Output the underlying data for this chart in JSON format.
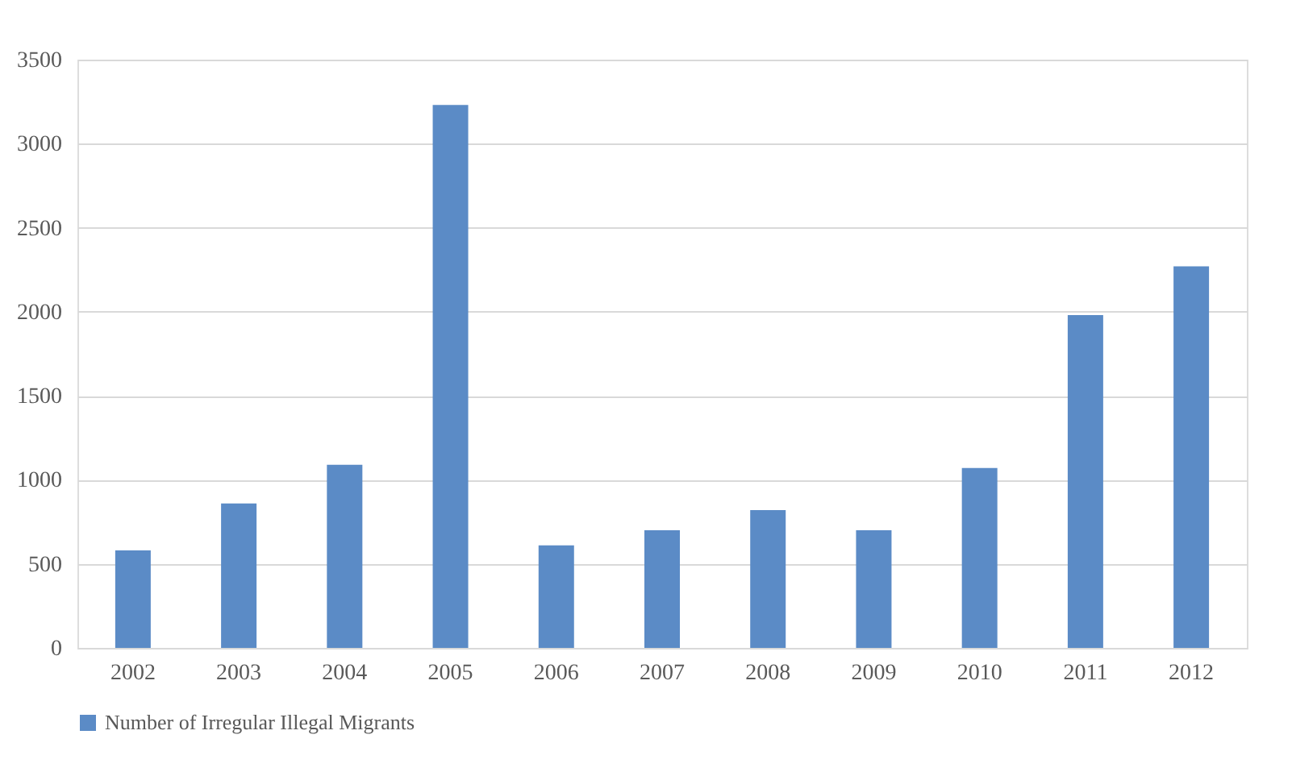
{
  "chart_data": {
    "type": "bar",
    "categories": [
      "2002",
      "2003",
      "2004",
      "2005",
      "2006",
      "2007",
      "2008",
      "2009",
      "2010",
      "2011",
      "2012"
    ],
    "series": [
      {
        "name": "Number of Irregular Illegal Migrants",
        "color": "#5b8bc6",
        "values": [
          580,
          860,
          1090,
          3230,
          610,
          700,
          820,
          700,
          1070,
          1980,
          2270
        ]
      }
    ],
    "ylim": [
      0,
      3500
    ],
    "yticks": [
      0,
      500,
      1000,
      1500,
      2000,
      2500,
      3000,
      3500
    ],
    "grid": "y",
    "legend": "bottom"
  }
}
